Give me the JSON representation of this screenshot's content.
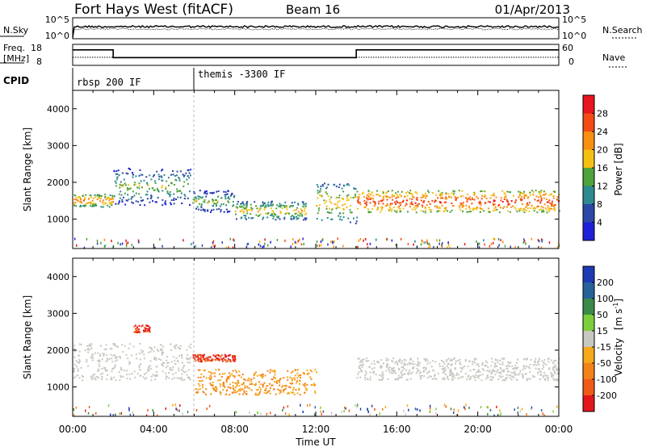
{
  "header": {
    "title": "Fort Hays West (fitACF)",
    "beam": "Beam 16",
    "date": "01/Apr/2013"
  },
  "sky_panel": {
    "left_label": "N.Sky",
    "right_label": "N.Search",
    "ticks": [
      "10^5",
      "10^0"
    ]
  },
  "freq_panel": {
    "left_label_1": "Freq.",
    "left_label_2": "[MHz]",
    "left_ticks": [
      "18",
      "8"
    ],
    "right_label": "Nave",
    "right_ticks": [
      "60",
      "0"
    ]
  },
  "cpid": {
    "label": "CPID",
    "segments": [
      {
        "label": "rbsp 200 IF",
        "start_hour": 0
      },
      {
        "label": "themis -3300 IF",
        "start_hour": 6
      }
    ]
  },
  "power_panel": {
    "ylabel": "Slant Range [km]",
    "cbar_label": "Power [dB]",
    "cbar_levels": [
      "28",
      "24",
      "20",
      "16",
      "12",
      "8",
      "4"
    ],
    "cbar_colors": [
      "#e8141e",
      "#f34a16",
      "#f88f10",
      "#f5c014",
      "#4ea23a",
      "#2e8a8f",
      "#2c47a6",
      "#1f1fd8"
    ]
  },
  "velocity_panel": {
    "ylabel": "Slant Range [km]",
    "cbar_label_1": "Velocity",
    "cbar_label_2": "[m s",
    "cbar_label_sup": "-1",
    "cbar_label_3": "]",
    "cbar_levels": [
      "200",
      "100",
      "50",
      "15",
      "-15",
      "-50",
      "-100",
      "-200"
    ],
    "cbar_colors": [
      "#1d3ab4",
      "#27619a",
      "#3a8a4a",
      "#7ccf3a",
      "#c8c8c0",
      "#f5a81a",
      "#f3821a",
      "#f05a17",
      "#e2171c"
    ]
  },
  "xaxis": {
    "label": "Time UT",
    "ticks": [
      "00:00",
      "04:00",
      "08:00",
      "12:00",
      "16:00",
      "20:00",
      "00:00"
    ]
  },
  "chart_data": {
    "type": "heatmap",
    "x_range_hours": [
      0,
      24
    ],
    "y_range_km": [
      200,
      4500
    ],
    "y_ticks": [
      1000,
      2000,
      3000,
      4000
    ],
    "title": "Fort Hays West (fitACF)",
    "xlabel": "Time UT",
    "ylabel": "Slant Range [km]",
    "frequency_mhz": [
      {
        "start_hour": 0,
        "end_hour": 2,
        "value": 14
      },
      {
        "start_hour": 2,
        "end_hour": 14,
        "value": 10
      },
      {
        "start_hour": 14,
        "end_hour": 24,
        "value": 14
      }
    ],
    "power_bands": [
      {
        "t0": 0.0,
        "t1": 2.0,
        "r0": 1350,
        "r1": 1700,
        "level": 20
      },
      {
        "t0": 2.0,
        "t1": 5.8,
        "r0": 1400,
        "r1": 2400,
        "level": 12
      },
      {
        "t0": 5.9,
        "t1": 8.0,
        "r0": 1200,
        "r1": 1800,
        "level": 12
      },
      {
        "t0": 8.0,
        "t1": 11.5,
        "r0": 1000,
        "r1": 1500,
        "level": 16
      },
      {
        "t0": 12.0,
        "t1": 14.0,
        "r0": 900,
        "r1": 2000,
        "level": 16
      },
      {
        "t0": 14.0,
        "t1": 24.0,
        "r0": 1200,
        "r1": 1800,
        "level": 24
      }
    ],
    "velocity_bands": [
      {
        "t0": 0.0,
        "t1": 5.8,
        "r0": 1200,
        "r1": 2200,
        "value": 0
      },
      {
        "t0": 3.0,
        "t1": 3.8,
        "r0": 2500,
        "r1": 2700,
        "value": -200
      },
      {
        "t0": 5.9,
        "t1": 8.0,
        "r0": 1700,
        "r1": 1900,
        "value": -200
      },
      {
        "t0": 6.0,
        "t1": 12.0,
        "r0": 800,
        "r1": 1500,
        "value": -50
      },
      {
        "t0": 14.0,
        "t1": 24.0,
        "r0": 1200,
        "r1": 1800,
        "value": 0
      }
    ]
  }
}
